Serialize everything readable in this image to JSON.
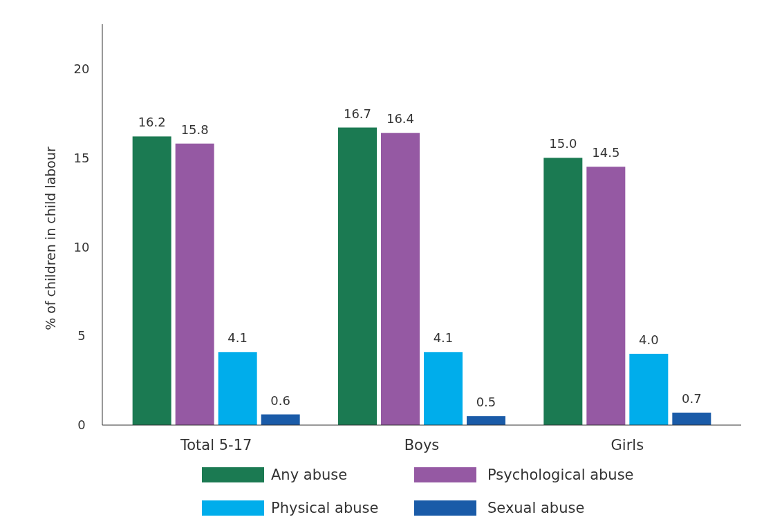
{
  "chart_data": {
    "type": "bar",
    "ylabel": "% of children in child labour",
    "categories": [
      "Total 5-17",
      "Boys",
      "Girls"
    ],
    "series": [
      {
        "name": "Any abuse",
        "color": "#1b7a52",
        "values": [
          16.2,
          16.7,
          15.0
        ],
        "value_labels": [
          "16.2",
          "16.7",
          "15.0"
        ]
      },
      {
        "name": "Psychological abuse",
        "color": "#9559a3",
        "values": [
          15.8,
          16.4,
          14.5
        ],
        "value_labels": [
          "15.8",
          "16.4",
          "14.5"
        ]
      },
      {
        "name": "Physical abuse",
        "color": "#00adeb",
        "values": [
          4.1,
          4.1,
          4.0
        ],
        "value_labels": [
          "4.1",
          "4.1",
          "4.0"
        ]
      },
      {
        "name": "Sexual abuse",
        "color": "#1a5ba8",
        "values": [
          0.6,
          0.5,
          0.7
        ],
        "value_labels": [
          "0.6",
          "0.5",
          "0.7"
        ]
      }
    ],
    "ylim": [
      0,
      22.5
    ],
    "yticks": [
      0,
      5,
      10,
      15,
      20
    ],
    "legend": "bottom",
    "grid": false
  }
}
